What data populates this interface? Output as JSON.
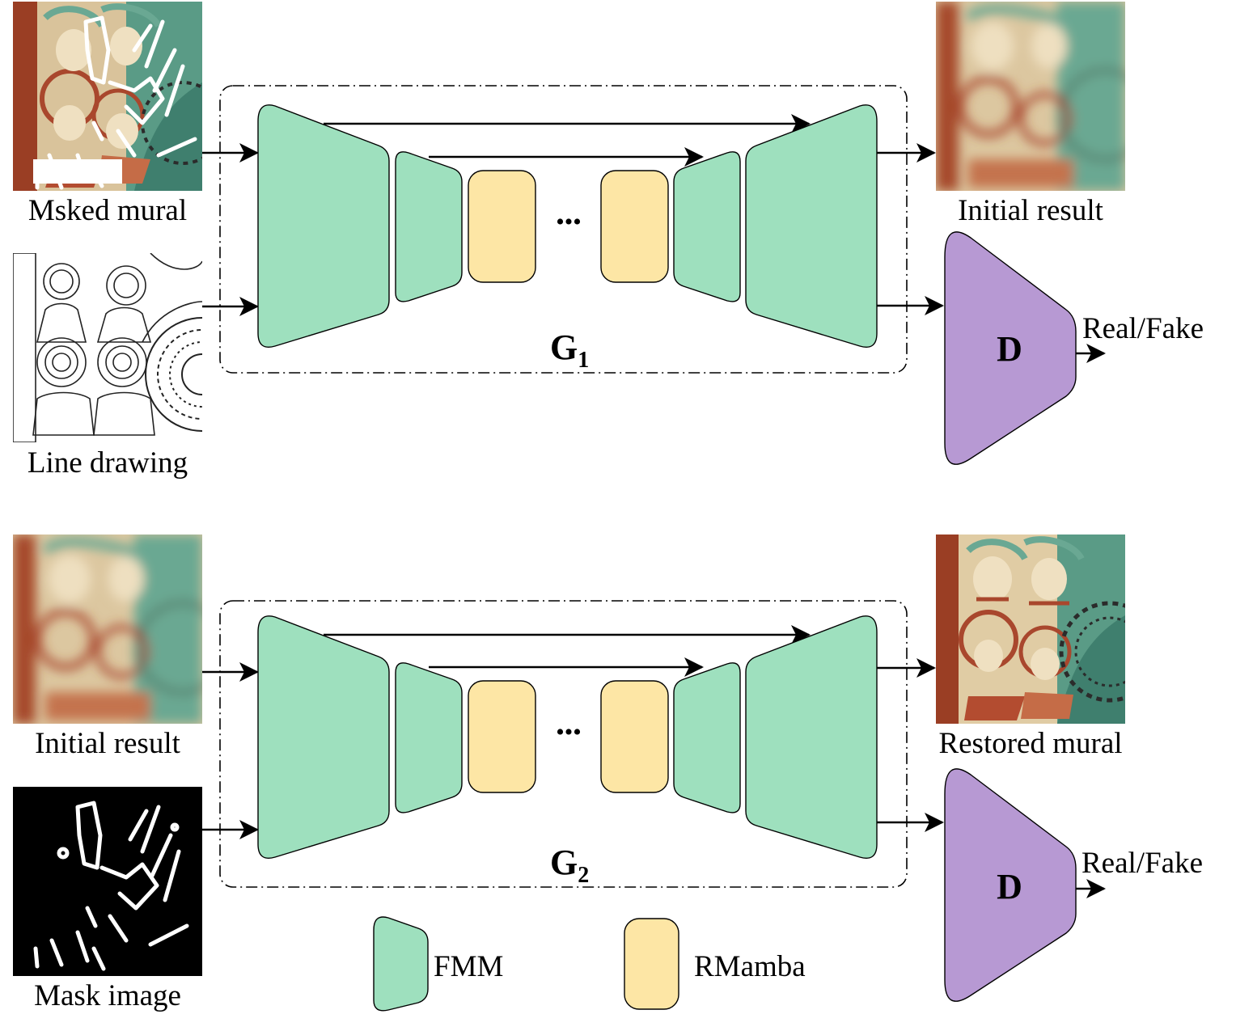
{
  "stage1": {
    "inputs": [
      {
        "label": "Msked mural",
        "image": "masked-mural-thumbnail"
      },
      {
        "label": "Line drawing",
        "image": "line-drawing-thumbnail"
      }
    ],
    "generator": {
      "letter": "G",
      "subscript": "1"
    },
    "ellipsis": "•••",
    "output": {
      "label": "Initial result",
      "image": "initial-result-thumbnail"
    },
    "discriminator": {
      "label": "D",
      "output": "Real/Fake"
    }
  },
  "stage2": {
    "inputs": [
      {
        "label": "Initial result",
        "image": "initial-result-thumbnail"
      },
      {
        "label": "Mask image",
        "image": "mask-image-thumbnail"
      }
    ],
    "generator": {
      "letter": "G",
      "subscript": "2"
    },
    "ellipsis": "•••",
    "output": {
      "label": "Restored mural",
      "image": "restored-mural-thumbnail"
    },
    "discriminator": {
      "label": "D",
      "output": "Real/Fake"
    }
  },
  "legend": [
    {
      "label": "FMM",
      "color": "#9ee0be"
    },
    {
      "label": "RMamba",
      "color": "#fde6a5"
    }
  ],
  "colors": {
    "fmm": "#9ee0be",
    "rmamba": "#fde6a5",
    "discriminator": "#b799d3",
    "mural_red": "#a9472d",
    "mural_teal": "#4c9a85",
    "mural_cream": "#e3cfa6"
  }
}
